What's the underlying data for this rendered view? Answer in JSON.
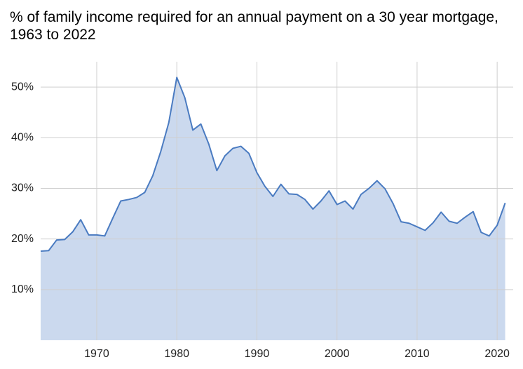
{
  "chart_data": {
    "type": "area",
    "title": "% of family income required for an annual payment on a 30 year mortgage, 1963 to 2022",
    "x": [
      1963,
      1964,
      1965,
      1966,
      1967,
      1968,
      1969,
      1970,
      1971,
      1972,
      1973,
      1974,
      1975,
      1976,
      1977,
      1978,
      1979,
      1980,
      1981,
      1982,
      1983,
      1984,
      1985,
      1986,
      1987,
      1988,
      1989,
      1990,
      1991,
      1992,
      1993,
      1994,
      1995,
      1996,
      1997,
      1998,
      1999,
      2000,
      2001,
      2002,
      2003,
      2004,
      2005,
      2006,
      2007,
      2008,
      2009,
      2010,
      2011,
      2012,
      2013,
      2014,
      2015,
      2016,
      2017,
      2018,
      2019,
      2020,
      2021
    ],
    "values": [
      17.6,
      17.7,
      19.8,
      19.9,
      21.4,
      23.8,
      20.8,
      20.8,
      20.6,
      24.1,
      27.5,
      27.8,
      28.2,
      29.2,
      32.5,
      37.3,
      43.0,
      51.9,
      47.9,
      41.5,
      42.7,
      38.7,
      33.5,
      36.4,
      37.9,
      38.3,
      36.9,
      33.1,
      30.4,
      28.4,
      30.8,
      28.9,
      28.8,
      27.8,
      25.9,
      27.5,
      29.5,
      26.8,
      27.5,
      25.9,
      28.8,
      30.0,
      31.5,
      29.9,
      27.0,
      23.4,
      23.1,
      22.4,
      21.7,
      23.2,
      25.3,
      23.5,
      23.1,
      24.3,
      25.4,
      21.3,
      20.6,
      22.7,
      27.1
    ],
    "color": "#4a7bc1",
    "area_color": "#cbd9ee",
    "xlim": [
      1963,
      2022
    ],
    "ylim": [
      0,
      55
    ],
    "xticks": [
      1970,
      1980,
      1990,
      2000,
      2010,
      2020
    ],
    "yticks": [
      {
        "value": 10,
        "label": "10%"
      },
      {
        "value": 20,
        "label": "20%"
      },
      {
        "value": 30,
        "label": "30%"
      },
      {
        "value": 40,
        "label": "40%"
      },
      {
        "value": 50,
        "label": "50%"
      }
    ],
    "grid": true
  }
}
